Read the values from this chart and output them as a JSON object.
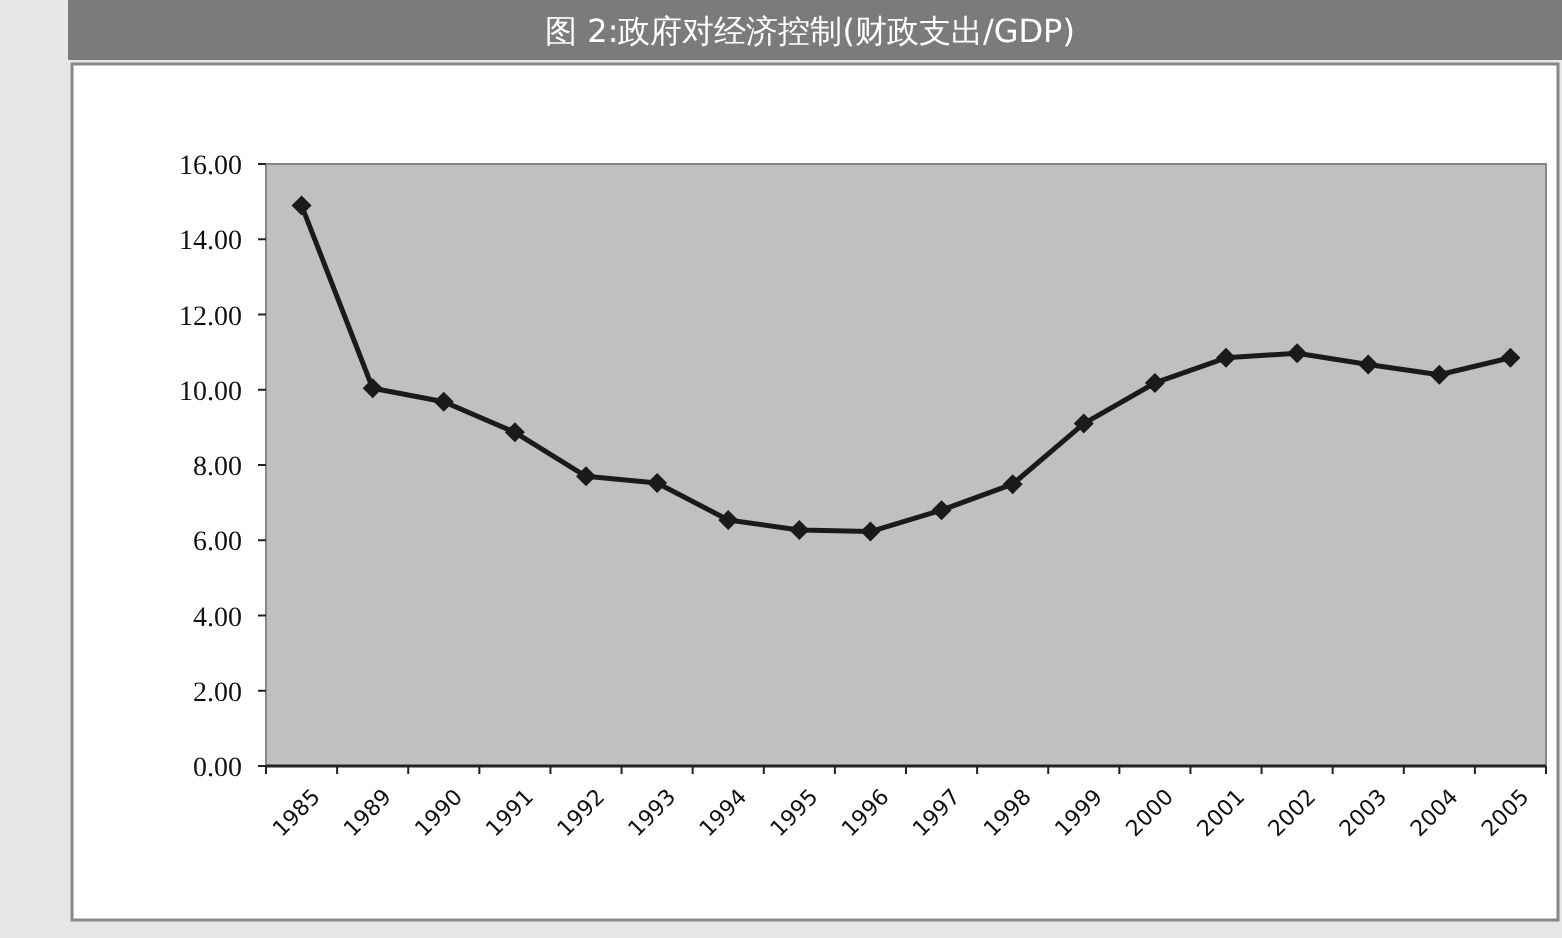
{
  "chart_data": {
    "type": "line",
    "title": "图 2:政府对经济控制(财政支出/GDP)",
    "categories": [
      "1985",
      "1989",
      "1990",
      "1991",
      "1992",
      "1993",
      "1994",
      "1995",
      "1996",
      "1997",
      "1998",
      "1999",
      "2000",
      "2001",
      "2002",
      "2003",
      "2004",
      "2005"
    ],
    "series": [
      {
        "color": "#1a1a1a",
        "values": [
          14.9,
          10.04,
          9.68,
          8.87,
          7.7,
          7.52,
          6.54,
          6.27,
          6.23,
          6.8,
          7.49,
          9.1,
          10.18,
          10.85,
          10.97,
          10.67,
          10.4,
          10.85
        ]
      }
    ],
    "ylim": [
      0,
      16
    ],
    "yticks": [
      {
        "value": 0,
        "label": "0.00"
      },
      {
        "value": 2,
        "label": "2.00"
      },
      {
        "value": 4,
        "label": "4.00"
      },
      {
        "value": 6,
        "label": "6.00"
      },
      {
        "value": 8,
        "label": "8.00"
      },
      {
        "value": 10,
        "label": "10.00"
      },
      {
        "value": 12,
        "label": "12.00"
      },
      {
        "value": 14,
        "label": "14.00"
      },
      {
        "value": 16,
        "label": "16.00"
      }
    ],
    "marker": "diamond",
    "line_style": "solid",
    "grid": false
  }
}
